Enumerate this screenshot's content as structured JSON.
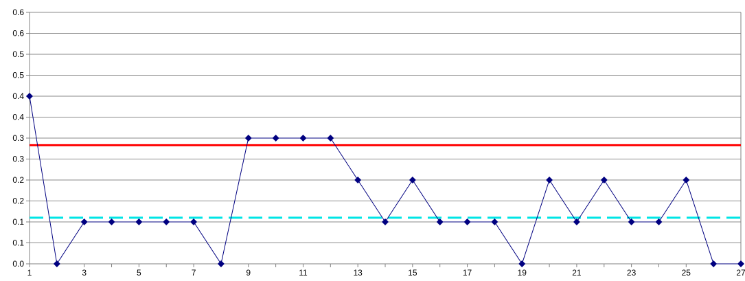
{
  "chart_data": {
    "type": "line",
    "title": "",
    "xlabel": "",
    "ylabel": "",
    "x": [
      1,
      2,
      3,
      4,
      5,
      6,
      7,
      8,
      9,
      10,
      11,
      12,
      13,
      14,
      15,
      16,
      17,
      18,
      19,
      20,
      21,
      22,
      23,
      24,
      25,
      26,
      27
    ],
    "xlim": [
      1,
      27
    ],
    "ylim": [
      0,
      0.6
    ],
    "grid": true,
    "legend": "none",
    "y_tick_values": [
      0,
      0.05,
      0.1,
      0.15,
      0.2,
      0.25,
      0.3,
      0.35,
      0.4,
      0.45,
      0.5,
      0.55,
      0.6
    ],
    "y_tick_labels": [
      "0.0",
      "0.1",
      "0.1",
      "0.2",
      "0.2",
      "0.3",
      "0.3",
      "0.4",
      "0.4",
      "0.5",
      "0.5",
      "0.6",
      "0.6"
    ],
    "x_tick_values": [
      1,
      3,
      5,
      7,
      9,
      11,
      13,
      15,
      17,
      19,
      21,
      23,
      25,
      27
    ],
    "x_tick_labels": [
      "1",
      "3",
      "5",
      "7",
      "9",
      "11",
      "13",
      "15",
      "17",
      "19",
      "21",
      "23",
      "25",
      "27"
    ],
    "series": [
      {
        "values": [
          0.4,
          0,
          0.1,
          0.1,
          0.1,
          0.1,
          0.1,
          0,
          0.3,
          0.3,
          0.3,
          0.3,
          0.2,
          0.1,
          0.2,
          0.1,
          0.1,
          0.1,
          0,
          0.2,
          0.1,
          0.2,
          0.1,
          0.1,
          0.2,
          0,
          0
        ],
        "color": "#000080",
        "marker": "diamond"
      }
    ],
    "reference_lines": [
      {
        "y": 0.283,
        "color": "#ff0000",
        "style": "solid"
      },
      {
        "y": 0.11,
        "color": "#00e5e5",
        "style": "dashed"
      }
    ]
  }
}
